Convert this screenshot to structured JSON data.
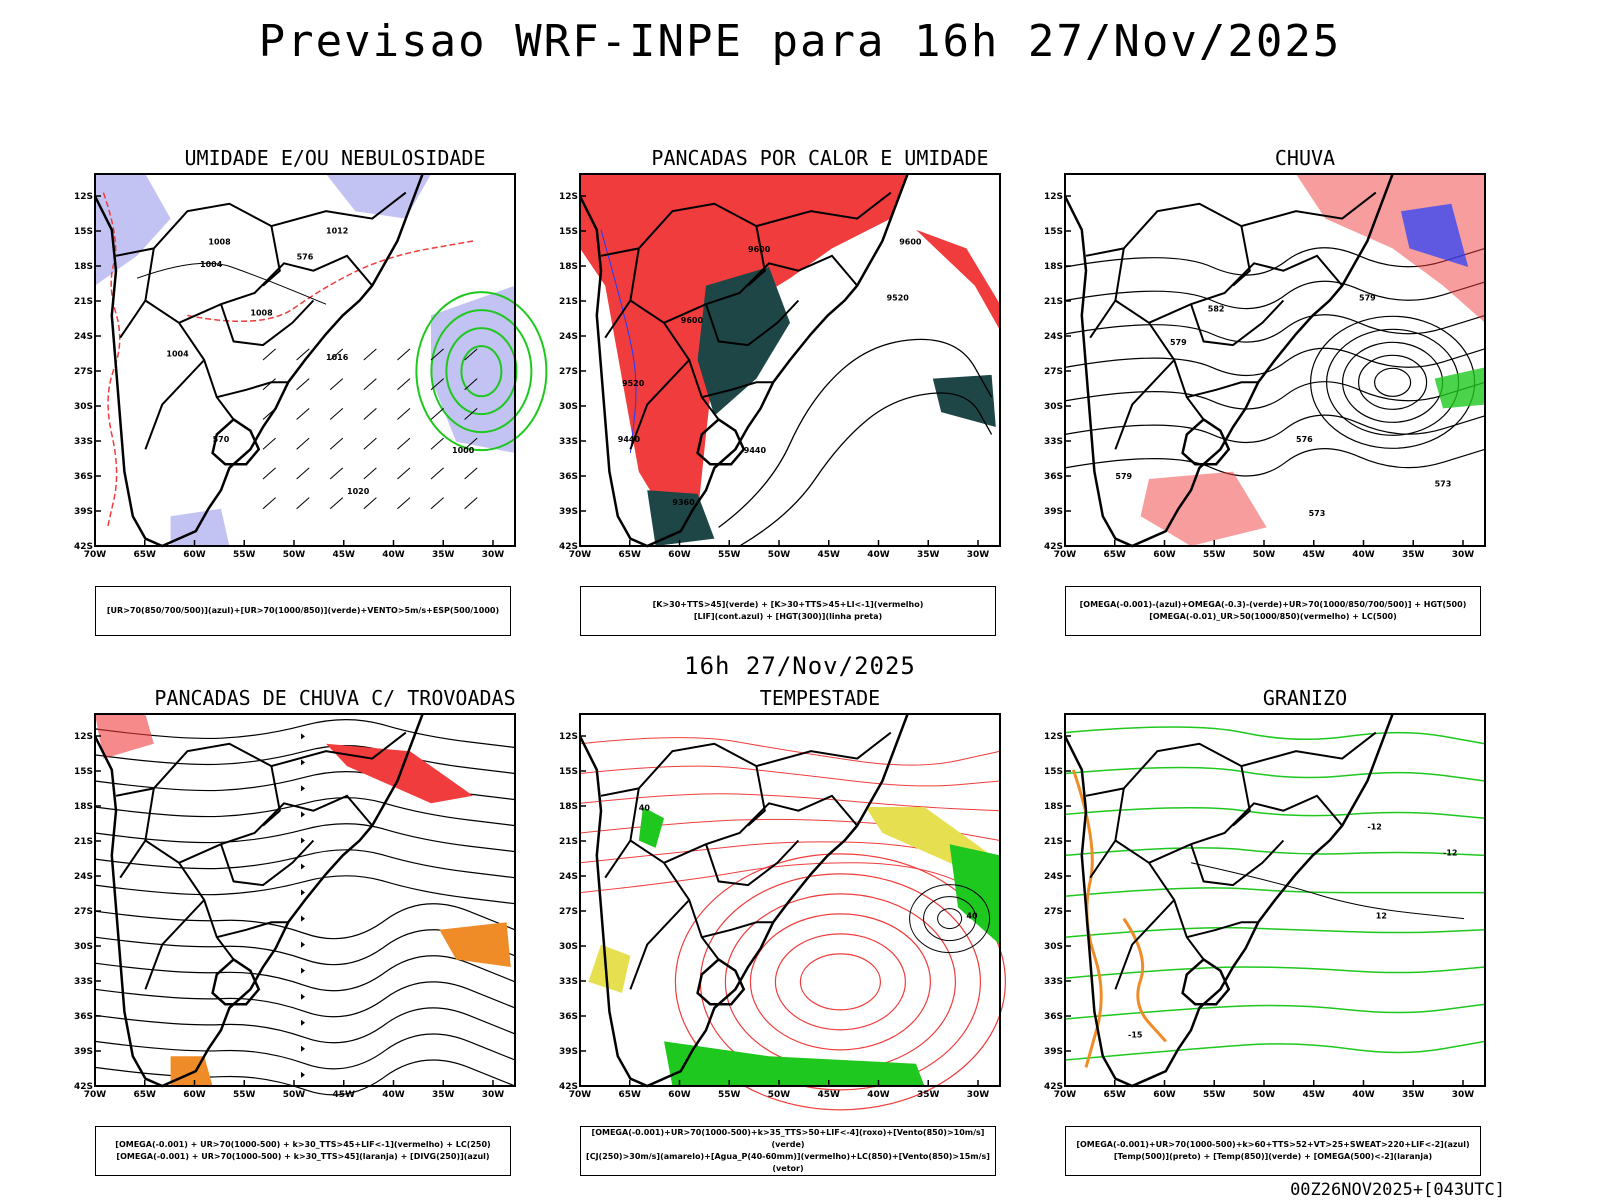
{
  "title": "Previsao WRF-INPE  para 16h 27/Nov/2025",
  "subtitle": "16h 27/Nov/2025",
  "footer": "00Z26NOV2025+[043UTC]",
  "axes": {
    "lat_labels": [
      "12S",
      "15S",
      "18S",
      "21S",
      "24S",
      "27S",
      "30S",
      "33S",
      "36S",
      "39S",
      "42S"
    ],
    "lon_labels": [
      "70W",
      "65W",
      "60W",
      "55W",
      "50W",
      "45W",
      "40W",
      "35W",
      "30W"
    ]
  },
  "colors": {
    "red": "#f03c3c",
    "green": "#1ec81e",
    "lightblue": "#b4b4f0",
    "blue": "#1e3cff",
    "darkteal": "#1e4646",
    "orange": "#f08c28",
    "yellow": "#e6e050"
  },
  "panels": [
    {
      "title": "UMIDADE E/OU NEBULOSIDADE",
      "legend": [
        "[UR>70(850/700/500)](azul)+[UR>70(1000/850)](verde)+VENTO>5m/s+ESP(500/1000)"
      ],
      "contour_labels": [
        "1008",
        "1004",
        "1012",
        "1016",
        "1020",
        "1008",
        "1004",
        "570",
        "1000",
        "576"
      ]
    },
    {
      "title": "PANCADAS POR CALOR E UMIDADE",
      "legend": [
        "[K>30+TTS>45](verde) + [K>30+TTS>45+LI<-1](vermelho)",
        "[LIF](cont.azul) + [HGT(300)](linha preta)"
      ],
      "contour_labels": [
        "9600",
        "9520",
        "9600",
        "9520",
        "9440",
        "9440",
        "9360",
        "9600"
      ]
    },
    {
      "title": "CHUVA",
      "legend": [
        "[OMEGA(-0.001)-(azul)+OMEGA(-0.3)-(verde)+UR>70(1000/850/700/500)] + HGT(500)",
        "[OMEGA(-0.01)_UR>50(1000/850)(vermelho) + LC(500)"
      ],
      "contour_labels": [
        "579",
        "582",
        "579",
        "576",
        "573",
        "579",
        "573"
      ]
    },
    {
      "title": "PANCADAS DE CHUVA C/ TROVOADAS",
      "legend": [
        "[OMEGA(-0.001) + UR>70(1000-500) + k>30_TTS>45+LIF<-1](vermelho) + LC(250)",
        "[OMEGA(-0.001) + UR>70(1000-500) + k>30_TTS>45](laranja) + [DIVG(250)](azul)"
      ],
      "contour_labels": []
    },
    {
      "title": "TEMPESTADE",
      "legend": [
        "[OMEGA(-0.001)+UR>70(1000-500)+k>35_TTS>50+LIF<-4](roxo)+[Vento(850)>10m/s](verde)",
        "[CJ(250)>30m/s](amarelo)+[Agua_P(40-60mm)](vermelho)+LC(850)+[Vento(850)>15m/s](vetor)"
      ],
      "contour_labels": [
        "40",
        "40"
      ]
    },
    {
      "title": "GRANIZO",
      "legend": [
        "[OMEGA(-0.001)+UR>70(1000-500)+k>60+TTS>52+VT>25+SWEAT>220+LIF<-2](azul)",
        "[Temp(500)](preto) + [Temp(850)](verde) + [OMEGA(500)<-2](laranja)"
      ],
      "contour_labels": [
        "-12",
        "12",
        "-12",
        "-15"
      ]
    }
  ]
}
